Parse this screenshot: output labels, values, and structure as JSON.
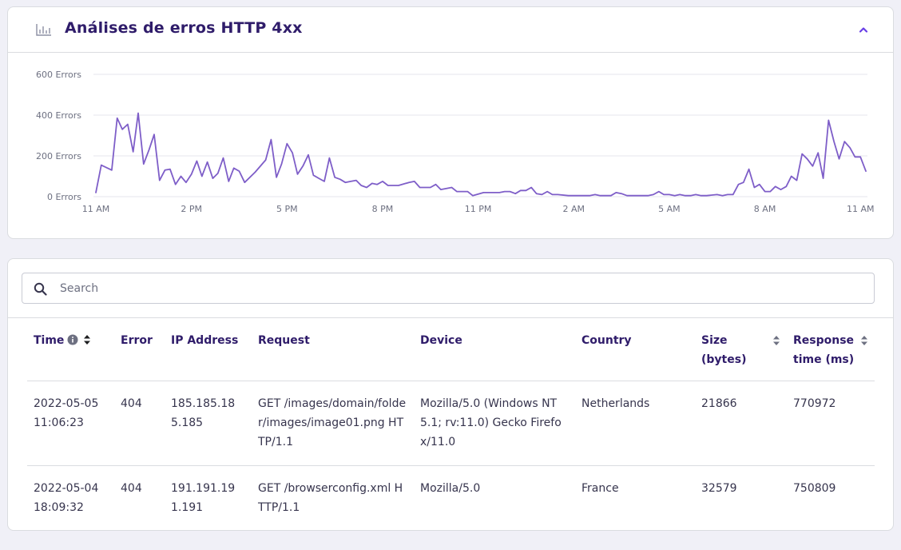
{
  "header": {
    "title": "Análises de erros HTTP 4xx",
    "icon": "bar-chart-icon",
    "collapse_icon": "chevron-up-icon"
  },
  "colors": {
    "accent": "#7e5ec8",
    "title": "#2f1c6a",
    "background": "#f0f0f7"
  },
  "chart_data": {
    "type": "line",
    "title": "",
    "xlabel": "",
    "ylabel": "",
    "ylim": [
      0,
      600
    ],
    "y_ticks": [
      "0 Errors",
      "200 Errors",
      "400 Errors",
      "600 Errors"
    ],
    "y_tick_values": [
      0,
      200,
      400,
      600
    ],
    "x_ticks": [
      "11 AM",
      "2 PM",
      "5 PM",
      "8 PM",
      "11 PM",
      "2 AM",
      "5 AM",
      "8 AM",
      "11 AM"
    ],
    "x_tick_hours": [
      0,
      3,
      6,
      9,
      12,
      15,
      18,
      21,
      24
    ],
    "grid": true,
    "legend": "none",
    "series": [
      {
        "color": "#7e5ec8",
        "points": [
          [
            0.0,
            20
          ],
          [
            0.17,
            155
          ],
          [
            0.5,
            130
          ],
          [
            0.67,
            385
          ],
          [
            0.83,
            330
          ],
          [
            1.0,
            355
          ],
          [
            1.17,
            220
          ],
          [
            1.33,
            410
          ],
          [
            1.5,
            160
          ],
          [
            1.67,
            230
          ],
          [
            1.83,
            305
          ],
          [
            2.0,
            80
          ],
          [
            2.17,
            130
          ],
          [
            2.33,
            135
          ],
          [
            2.5,
            60
          ],
          [
            2.67,
            100
          ],
          [
            2.83,
            70
          ],
          [
            3.0,
            110
          ],
          [
            3.17,
            175
          ],
          [
            3.33,
            100
          ],
          [
            3.5,
            170
          ],
          [
            3.67,
            90
          ],
          [
            3.83,
            115
          ],
          [
            4.0,
            190
          ],
          [
            4.17,
            75
          ],
          [
            4.33,
            140
          ],
          [
            4.5,
            125
          ],
          [
            4.67,
            70
          ],
          [
            5.0,
            120
          ],
          [
            5.33,
            180
          ],
          [
            5.5,
            280
          ],
          [
            5.67,
            95
          ],
          [
            5.83,
            160
          ],
          [
            6.0,
            260
          ],
          [
            6.17,
            215
          ],
          [
            6.33,
            110
          ],
          [
            6.5,
            150
          ],
          [
            6.67,
            205
          ],
          [
            6.83,
            105
          ],
          [
            7.0,
            90
          ],
          [
            7.17,
            75
          ],
          [
            7.33,
            190
          ],
          [
            7.5,
            95
          ],
          [
            7.67,
            85
          ],
          [
            7.83,
            70
          ],
          [
            8.0,
            75
          ],
          [
            8.17,
            80
          ],
          [
            8.33,
            55
          ],
          [
            8.5,
            45
          ],
          [
            8.67,
            65
          ],
          [
            8.83,
            60
          ],
          [
            9.0,
            75
          ],
          [
            9.17,
            55
          ],
          [
            9.5,
            55
          ],
          [
            9.83,
            70
          ],
          [
            10.0,
            75
          ],
          [
            10.17,
            45
          ],
          [
            10.5,
            45
          ],
          [
            10.67,
            60
          ],
          [
            10.83,
            35
          ],
          [
            11.17,
            45
          ],
          [
            11.33,
            25
          ],
          [
            11.67,
            25
          ],
          [
            11.83,
            5
          ],
          [
            12.17,
            20
          ],
          [
            12.67,
            20
          ],
          [
            12.83,
            25
          ],
          [
            13.0,
            25
          ],
          [
            13.17,
            15
          ],
          [
            13.33,
            30
          ],
          [
            13.5,
            30
          ],
          [
            13.67,
            45
          ],
          [
            13.83,
            15
          ],
          [
            14.0,
            10
          ],
          [
            14.17,
            25
          ],
          [
            14.33,
            10
          ],
          [
            14.5,
            10
          ],
          [
            14.83,
            5
          ],
          [
            15.17,
            5
          ],
          [
            15.5,
            5
          ],
          [
            15.67,
            10
          ],
          [
            15.83,
            5
          ],
          [
            16.17,
            5
          ],
          [
            16.33,
            20
          ],
          [
            16.5,
            15
          ],
          [
            16.67,
            5
          ],
          [
            17.0,
            5
          ],
          [
            17.33,
            5
          ],
          [
            17.5,
            10
          ],
          [
            17.67,
            25
          ],
          [
            17.83,
            10
          ],
          [
            18.0,
            10
          ],
          [
            18.17,
            5
          ],
          [
            18.33,
            10
          ],
          [
            18.5,
            5
          ],
          [
            18.67,
            5
          ],
          [
            18.83,
            10
          ],
          [
            19.0,
            5
          ],
          [
            19.17,
            5
          ],
          [
            19.5,
            10
          ],
          [
            19.67,
            5
          ],
          [
            19.83,
            10
          ],
          [
            20.0,
            10
          ],
          [
            20.17,
            60
          ],
          [
            20.33,
            70
          ],
          [
            20.5,
            135
          ],
          [
            20.67,
            45
          ],
          [
            20.83,
            60
          ],
          [
            21.0,
            25
          ],
          [
            21.17,
            25
          ],
          [
            21.33,
            50
          ],
          [
            21.5,
            35
          ],
          [
            21.67,
            50
          ],
          [
            21.83,
            100
          ],
          [
            22.0,
            80
          ],
          [
            22.17,
            210
          ],
          [
            22.33,
            185
          ],
          [
            22.5,
            150
          ],
          [
            22.67,
            215
          ],
          [
            22.83,
            90
          ],
          [
            23.0,
            375
          ],
          [
            23.17,
            270
          ],
          [
            23.33,
            185
          ],
          [
            23.5,
            270
          ],
          [
            23.67,
            240
          ],
          [
            23.83,
            195
          ],
          [
            24.0,
            195
          ],
          [
            24.17,
            125
          ]
        ]
      }
    ]
  },
  "search": {
    "placeholder": "Search",
    "value": ""
  },
  "table": {
    "columns": [
      {
        "key": "time",
        "label": "Time",
        "info": true,
        "sortable": true,
        "sort_position": "inline"
      },
      {
        "key": "error",
        "label": "Error"
      },
      {
        "key": "ip",
        "label": "IP Address"
      },
      {
        "key": "request",
        "label": "Request"
      },
      {
        "key": "device",
        "label": "Device"
      },
      {
        "key": "country",
        "label": "Country"
      },
      {
        "key": "size",
        "label": "Size (bytes)",
        "sortable": true,
        "sort_position": "right"
      },
      {
        "key": "response",
        "label": "Response time (ms)",
        "sortable": true,
        "sort_position": "right"
      }
    ],
    "rows": [
      {
        "time": "2022-05-05 11:06:23",
        "error": "404",
        "ip": "185.185.185.185",
        "request": "GET /images/domain/folder/images/image01.png HTTP/1.1",
        "device": "Mozilla/5.0 (Windows NT 5.1; rv:11.0) Gecko Firefox/11.0",
        "country": "Netherlands",
        "size": "21866",
        "response": "770972"
      },
      {
        "time": "2022-05-04 18:09:32",
        "error": "404",
        "ip": "191.191.191.191",
        "request": "GET /browserconfig.xml HTTP/1.1",
        "device": "Mozilla/5.0",
        "country": "France",
        "size": "32579",
        "response": "750809"
      }
    ]
  }
}
